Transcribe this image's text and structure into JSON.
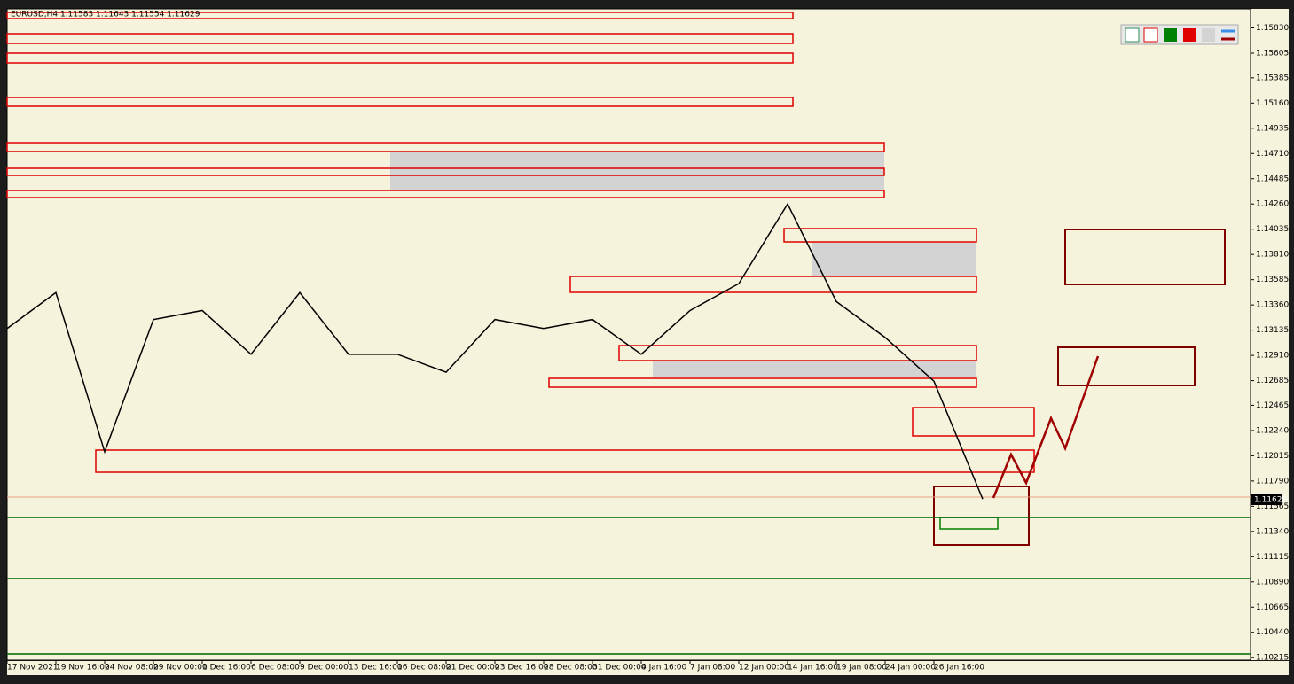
{
  "chart_data": {
    "type": "line",
    "title": "EURUSD,H4  1.11583 1.11643 1.11554 1.11629",
    "current_price": "1.11629",
    "color": "#000000",
    "categories": [
      "17 Nov 2021",
      "19 Nov 16:00",
      "24 Nov 08:00",
      "29 Nov 00:00",
      "1 Dec 16:00",
      "6 Dec 08:00",
      "9 Dec 00:00",
      "13 Dec 16:00",
      "16 Dec 08:00",
      "21 Dec 00:00",
      "23 Dec 16:00",
      "28 Dec 08:00",
      "31 Dec 00:00",
      "4 Jan 16:00",
      "7 Jan 08:00",
      "12 Jan 00:00",
      "14 Jan 16:00",
      "19 Jan 08:00",
      "24 Jan 00:00",
      "26 Jan 16:00",
      null
    ],
    "values": [
      1.1315,
      1.1347,
      1.1205,
      1.1323,
      1.1331,
      1.1292,
      1.1347,
      1.1292,
      1.1292,
      1.1276,
      1.1323,
      1.1315,
      1.1323,
      1.1292,
      1.1331,
      1.1355,
      1.1426,
      1.1339,
      1.1307,
      1.1268,
      1.11629
    ],
    "ylim": [
      1.10193,
      1.16
    ],
    "yticks": [
      {
        "value": 1.1583,
        "label": "1.15830"
      },
      {
        "value": 1.15605,
        "label": "1.15605"
      },
      {
        "value": 1.15385,
        "label": "1.15385"
      },
      {
        "value": 1.1516,
        "label": "1.15160"
      },
      {
        "value": 1.14935,
        "label": "1.14935"
      },
      {
        "value": 1.1471,
        "label": "1.14710"
      },
      {
        "value": 1.14485,
        "label": "1.14485"
      },
      {
        "value": 1.1426,
        "label": "1.14260"
      },
      {
        "value": 1.14035,
        "label": "1.14035"
      },
      {
        "value": 1.1381,
        "label": "1.13810"
      },
      {
        "value": 1.13585,
        "label": "1.13585"
      },
      {
        "value": 1.1336,
        "label": "1.13360"
      },
      {
        "value": 1.13135,
        "label": "1.13135"
      },
      {
        "value": 1.1291,
        "label": "1.12910"
      },
      {
        "value": 1.12685,
        "label": "1.12685"
      },
      {
        "value": 1.12465,
        "label": "1.12465"
      },
      {
        "value": 1.1224,
        "label": "1.12240"
      },
      {
        "value": 1.12015,
        "label": "1.12015"
      },
      {
        "value": 1.1179,
        "label": "1.11790"
      },
      {
        "value": 1.11565,
        "label": "1.11565"
      },
      {
        "value": 1.1134,
        "label": "1.11340"
      },
      {
        "value": 1.11115,
        "label": "1.11115"
      },
      {
        "value": 1.1089,
        "label": "1.10890"
      },
      {
        "value": 1.10665,
        "label": "1.10665"
      },
      {
        "value": 1.1044,
        "label": "1.10440"
      },
      {
        "value": 1.10215,
        "label": "1.10215"
      }
    ],
    "grid": false
  }
}
